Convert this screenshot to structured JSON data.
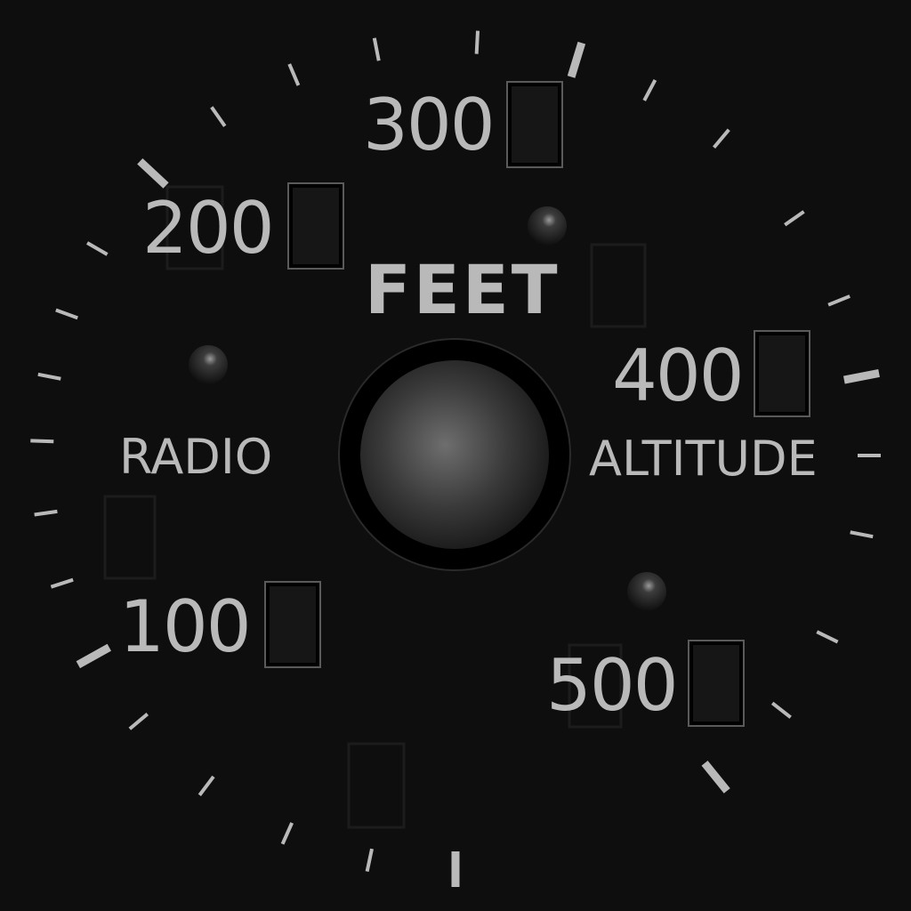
{
  "dial": {
    "scale_labels": [
      "100",
      "200",
      "300",
      "400",
      "500"
    ],
    "unit_label": "FEET",
    "left_label": "RADIO",
    "right_label": "ALTITUDE"
  },
  "colors": {
    "background": "#0e0e0e",
    "markings": "#b9b9b9",
    "knob_ring": "#000000",
    "knob_center": "#6e6e6e"
  },
  "icons": {
    "knob": "center-knob",
    "screw": "mounting-screw"
  }
}
